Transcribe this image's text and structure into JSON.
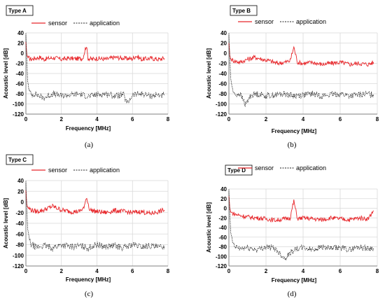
{
  "charts": [
    {
      "id": "a",
      "title": "Type A",
      "caption": "(a)",
      "legend": [
        "sensor",
        "application"
      ],
      "xlabel": "Frequency  [MHz]",
      "ylabel": "Acoustic level  [dB]",
      "xticks": [
        "0",
        "2",
        "4",
        "6",
        "8"
      ],
      "yticks": [
        "40",
        "20",
        "0",
        "-20",
        "-40",
        "-60",
        "-80",
        "-100",
        "-120"
      ]
    },
    {
      "id": "b",
      "title": "Type B",
      "caption": "(b)",
      "legend": [
        "sensor",
        "application"
      ],
      "xlabel": "Frequency  [MHz]",
      "ylabel": "Acoustic level  [dB]",
      "xticks": [
        "0",
        "2",
        "4",
        "6",
        "8"
      ],
      "yticks": [
        "40",
        "20",
        "0",
        "-20",
        "-40",
        "-60",
        "-80",
        "-100",
        "-120"
      ]
    },
    {
      "id": "c",
      "title": "Type C",
      "caption": "(c)",
      "legend": [
        "sensor",
        "application"
      ],
      "xlabel": "Frequency  [MHz]",
      "ylabel": "Acoustic level  [dB]",
      "xticks": [
        "0",
        "2",
        "4",
        "6",
        "8"
      ],
      "yticks": [
        "40",
        "20",
        "0",
        "-20",
        "-40",
        "-60",
        "-80",
        "-100",
        "-120"
      ]
    },
    {
      "id": "d",
      "title": "Type D",
      "caption": "(d)",
      "legend": [
        "sensor",
        "application"
      ],
      "xlabel": "Frequency  [MHz]",
      "ylabel": "Acoustic level  [dB]",
      "xticks": [
        "0",
        "2",
        "4",
        "6",
        "8"
      ],
      "yticks": [
        "40",
        "20",
        "0",
        "-20",
        "-40",
        "-60",
        "-80",
        "-100",
        "-120"
      ]
    }
  ],
  "colors": {
    "sensor": "#e8262a",
    "application": "#222222",
    "grid": "#d9d9d9"
  },
  "chart_data": [
    {
      "type": "line",
      "title": "Type A",
      "xlabel": "Frequency  [MHz]",
      "ylabel": "Acoustic level  [dB]",
      "xlim": [
        0,
        8
      ],
      "ylim": [
        -120,
        40
      ],
      "grid": true,
      "legend_position": "top",
      "series": [
        {
          "name": "sensor",
          "style": "solid",
          "x": [
            0,
            0.05,
            0.1,
            0.3,
            0.5,
            0.8,
            1.0,
            1.3,
            1.6,
            2.0,
            2.4,
            2.8,
            3.2,
            3.4,
            3.5,
            3.7,
            4.0,
            4.5,
            5.0,
            5.5,
            6.0,
            6.2,
            6.5,
            7.0,
            7.5,
            7.8
          ],
          "y": [
            22,
            -2,
            -8,
            -12,
            -10,
            -8,
            -12,
            -10,
            -9,
            -12,
            -10,
            -11,
            -10,
            15,
            -10,
            -12,
            -10,
            -12,
            -8,
            -10,
            -11,
            -5,
            -12,
            -10,
            -12,
            -10
          ]
        },
        {
          "name": "application",
          "style": "dotted",
          "x": [
            0,
            0.05,
            0.1,
            0.2,
            0.3,
            0.5,
            1.0,
            1.5,
            2.0,
            2.5,
            3.0,
            3.5,
            4.0,
            4.5,
            5.0,
            5.5,
            5.7,
            6.0,
            6.5,
            7.0,
            7.5,
            7.8
          ],
          "y": [
            35,
            -10,
            -55,
            -75,
            -82,
            -80,
            -88,
            -80,
            -84,
            -82,
            -80,
            -85,
            -82,
            -80,
            -84,
            -82,
            -100,
            -82,
            -80,
            -84,
            -82,
            -84
          ]
        }
      ]
    },
    {
      "type": "line",
      "title": "Type B",
      "xlabel": "Frequency  [MHz]",
      "ylabel": "Acoustic level  [dB]",
      "xlim": [
        0,
        8
      ],
      "ylim": [
        -120,
        40
      ],
      "grid": true,
      "legend_position": "top",
      "series": [
        {
          "name": "sensor",
          "style": "solid",
          "x": [
            0,
            0.05,
            0.1,
            0.3,
            0.6,
            1.0,
            1.4,
            1.8,
            2.2,
            2.6,
            3.0,
            3.3,
            3.5,
            3.7,
            4.0,
            4.5,
            5.0,
            5.5,
            6.0,
            6.5,
            7.0,
            7.5,
            7.8
          ],
          "y": [
            20,
            -5,
            -12,
            -15,
            -18,
            -12,
            -8,
            -12,
            -15,
            -20,
            -18,
            -15,
            12,
            -18,
            -20,
            -18,
            -22,
            -20,
            -18,
            -22,
            -20,
            -22,
            -18
          ]
        },
        {
          "name": "application",
          "style": "dotted",
          "x": [
            0,
            0.05,
            0.1,
            0.2,
            0.3,
            0.6,
            0.9,
            1.2,
            1.6,
            2.0,
            2.5,
            3.0,
            3.5,
            4.0,
            4.5,
            5.0,
            5.5,
            6.0,
            6.5,
            7.0,
            7.5,
            7.8
          ],
          "y": [
            35,
            -10,
            -50,
            -72,
            -82,
            -80,
            -102,
            -82,
            -80,
            -84,
            -82,
            -80,
            -84,
            -82,
            -80,
            -84,
            -82,
            -80,
            -84,
            -82,
            -80,
            -82
          ]
        }
      ]
    },
    {
      "type": "line",
      "title": "Type C",
      "xlabel": "Frequency  [MHz]",
      "ylabel": "Acoustic level  [dB]",
      "xlim": [
        0,
        8
      ],
      "ylim": [
        -120,
        40
      ],
      "grid": true,
      "legend_position": "top",
      "series": [
        {
          "name": "sensor",
          "style": "solid",
          "x": [
            0,
            0.05,
            0.1,
            0.3,
            0.6,
            1.0,
            1.5,
            2.0,
            2.5,
            3.0,
            3.3,
            3.4,
            3.6,
            4.0,
            4.5,
            5.0,
            5.5,
            6.0,
            6.5,
            7.0,
            7.5,
            7.8
          ],
          "y": [
            22,
            -5,
            -10,
            -15,
            -18,
            -15,
            -8,
            -15,
            -18,
            -18,
            -10,
            10,
            -15,
            -18,
            -20,
            -16,
            -18,
            -20,
            -18,
            -22,
            -18,
            -15
          ]
        },
        {
          "name": "application",
          "style": "dotted",
          "x": [
            0,
            0.05,
            0.1,
            0.2,
            0.3,
            0.6,
            1.0,
            1.5,
            2.0,
            2.5,
            3.0,
            3.5,
            4.0,
            4.5,
            5.0,
            5.5,
            6.0,
            6.5,
            7.0,
            7.5,
            7.8
          ],
          "y": [
            35,
            -10,
            -50,
            -72,
            -80,
            -85,
            -82,
            -86,
            -80,
            -84,
            -82,
            -86,
            -80,
            -84,
            -82,
            -86,
            -80,
            -84,
            -82,
            -86,
            -82
          ]
        }
      ]
    },
    {
      "type": "line",
      "title": "Type D",
      "xlabel": "Frequency  [MHz]",
      "ylabel": "Acoustic level  [dB]",
      "xlim": [
        0,
        8
      ],
      "ylim": [
        -120,
        40
      ],
      "grid": true,
      "legend_position": "top",
      "series": [
        {
          "name": "sensor",
          "style": "solid",
          "x": [
            0,
            0.05,
            0.1,
            0.3,
            0.6,
            1.0,
            1.5,
            2.0,
            2.5,
            3.0,
            3.3,
            3.5,
            3.7,
            4.0,
            4.5,
            5.0,
            5.5,
            6.0,
            6.5,
            7.0,
            7.5,
            7.8
          ],
          "y": [
            25,
            0,
            -8,
            -12,
            -15,
            -18,
            -20,
            -22,
            -25,
            -22,
            -20,
            15,
            -22,
            -20,
            -22,
            -24,
            -20,
            -22,
            -24,
            -20,
            -22,
            -5
          ]
        },
        {
          "name": "application",
          "style": "dotted",
          "x": [
            0,
            0.05,
            0.1,
            0.2,
            0.3,
            0.6,
            1.0,
            1.5,
            2.0,
            2.5,
            3.0,
            3.5,
            4.0,
            4.5,
            5.0,
            5.5,
            6.0,
            6.5,
            7.0,
            7.5,
            7.8
          ],
          "y": [
            35,
            -10,
            -50,
            -72,
            -80,
            -84,
            -82,
            -86,
            -80,
            -84,
            -104,
            -86,
            -82,
            -86,
            -80,
            -84,
            -82,
            -86,
            -80,
            -84,
            -82
          ]
        }
      ]
    }
  ]
}
